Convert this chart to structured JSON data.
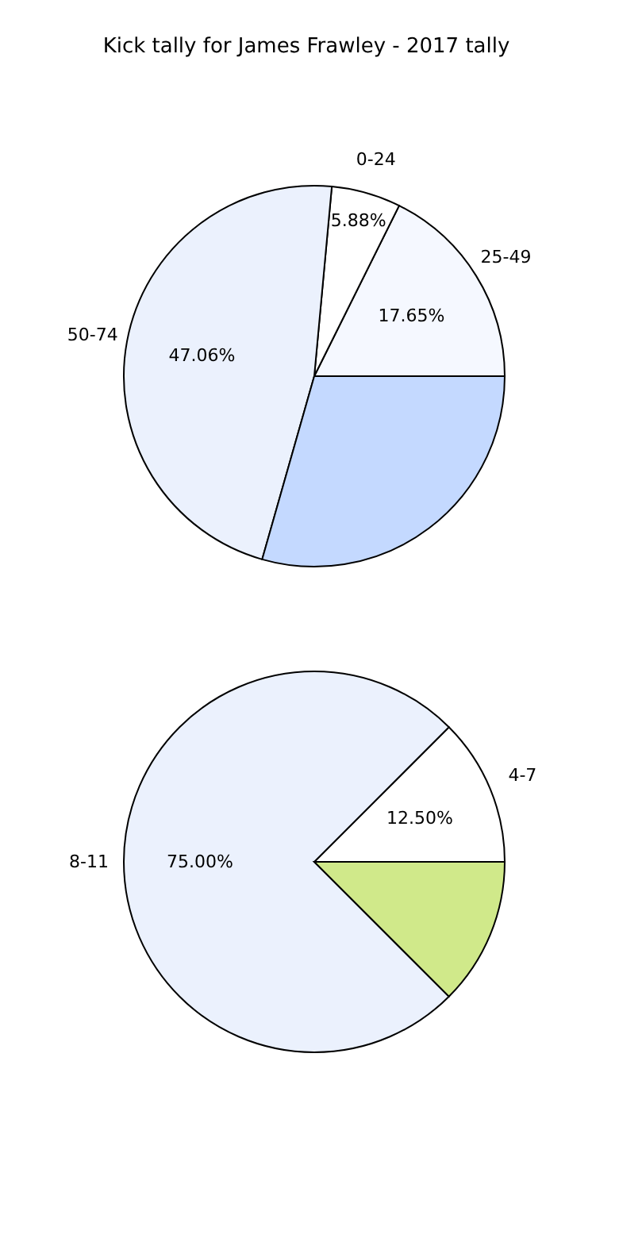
{
  "chart_data": [
    {
      "type": "pie",
      "title": "Kick tally for James Frawley - 2017 tally",
      "categories": [
        "25-49",
        "0-24",
        "50-74",
        null
      ],
      "values": [
        17.65,
        5.88,
        47.06,
        29.41
      ],
      "value_labels": [
        "17.65%",
        "5.88%",
        "47.06%",
        null
      ],
      "colors": [
        "#f5f8ff",
        "#ffffff",
        "#ebf1fd",
        "#c4d9ff"
      ]
    },
    {
      "type": "pie",
      "categories": [
        "4-7",
        "8-11",
        null
      ],
      "values": [
        12.5,
        75.0,
        12.5
      ],
      "value_labels": [
        "12.50%",
        "75.00%",
        null
      ],
      "colors": [
        "#ffffff",
        "#ebf1fd",
        "#d0e98a"
      ]
    }
  ]
}
